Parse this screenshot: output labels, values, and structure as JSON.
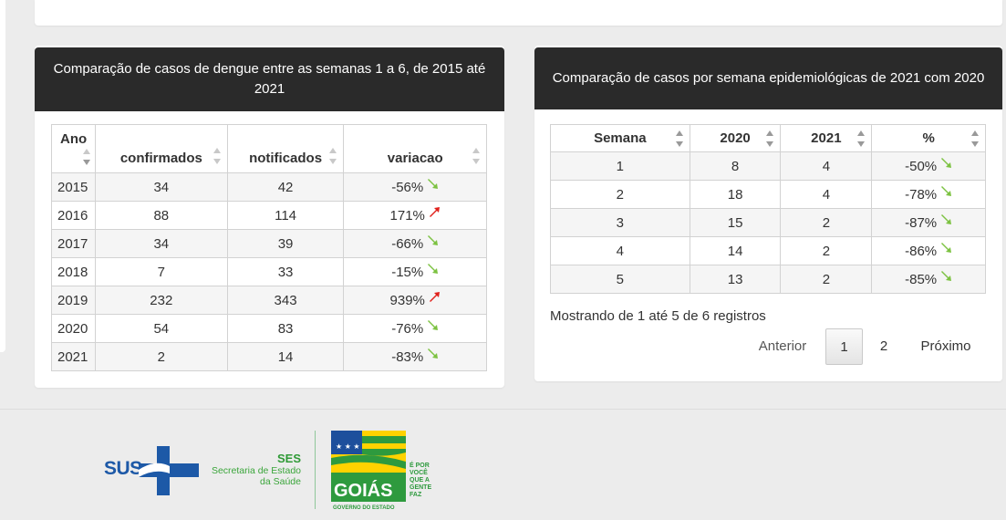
{
  "left_card": {
    "title": "Comparação de casos de dengue entre as semanas 1 a 6, de 2015 até 2021",
    "headers": [
      "Ano",
      "confirmados",
      "notificados",
      "variacao"
    ],
    "rows": [
      {
        "ano": "2015",
        "confirmados": "34",
        "notificados": "42",
        "variacao": "-56%",
        "trend": "down"
      },
      {
        "ano": "2016",
        "confirmados": "88",
        "notificados": "114",
        "variacao": "171%",
        "trend": "up"
      },
      {
        "ano": "2017",
        "confirmados": "34",
        "notificados": "39",
        "variacao": "-66%",
        "trend": "down"
      },
      {
        "ano": "2018",
        "confirmados": "7",
        "notificados": "33",
        "variacao": "-15%",
        "trend": "down"
      },
      {
        "ano": "2019",
        "confirmados": "232",
        "notificados": "343",
        "variacao": "939%",
        "trend": "up"
      },
      {
        "ano": "2020",
        "confirmados": "54",
        "notificados": "83",
        "variacao": "-76%",
        "trend": "down"
      },
      {
        "ano": "2021",
        "confirmados": "2",
        "notificados": "14",
        "variacao": "-83%",
        "trend": "down"
      }
    ]
  },
  "right_card": {
    "title": "Comparação de casos por semana epidemiológicas de 2021 com 2020",
    "headers": [
      "Semana",
      "2020",
      "2021",
      "%"
    ],
    "rows": [
      {
        "semana": "1",
        "y2020": "8",
        "y2021": "4",
        "pct": "-50%",
        "trend": "down"
      },
      {
        "semana": "2",
        "y2020": "18",
        "y2021": "4",
        "pct": "-78%",
        "trend": "down"
      },
      {
        "semana": "3",
        "y2020": "15",
        "y2021": "2",
        "pct": "-87%",
        "trend": "down"
      },
      {
        "semana": "4",
        "y2020": "14",
        "y2021": "2",
        "pct": "-86%",
        "trend": "down"
      },
      {
        "semana": "5",
        "y2020": "13",
        "y2021": "2",
        "pct": "-85%",
        "trend": "down"
      }
    ],
    "info": "Mostrando de 1 até 5 de 6 registros",
    "pagination": {
      "previous": "Anterior",
      "pages": [
        "1",
        "2"
      ],
      "current": "1",
      "next": "Próximo"
    }
  },
  "colors": {
    "trend_down": "#7cc241",
    "trend_up": "#e0201b",
    "header_bg": "#2a2a2a"
  },
  "footer": {
    "sus": "SUS",
    "ses_title": "SES",
    "ses_line1": "Secretaria de Estado",
    "ses_line2": "da Saúde",
    "goias": "GOIÁS",
    "goias_sub": "GOVERNO DO ESTADO",
    "slogan": [
      "É POR",
      "VOCÊ",
      "QUE A",
      "GENTE",
      "FAZ"
    ]
  }
}
